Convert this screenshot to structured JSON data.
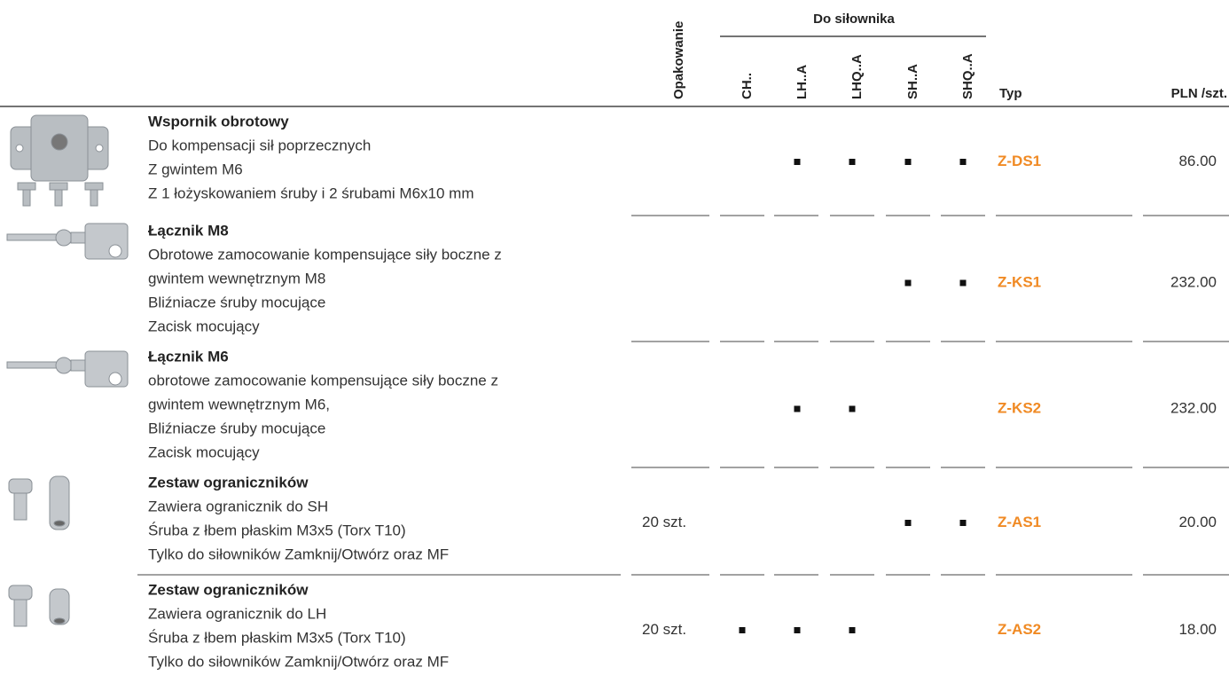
{
  "header": {
    "packaging": "Opakowanie",
    "actuator_group": "Do siłownika",
    "actuators": [
      "CH..",
      "LH..A",
      "LHQ..A",
      "SH..A",
      "SHQ..A"
    ],
    "type": "Typ",
    "price": "PLN /szt."
  },
  "rows": [
    {
      "title": "Wspornik obrotowy",
      "lines": [
        "Do kompensacji sił poprzecznych",
        "Z gwintem M6",
        "Z 1 łożyskowaniem śruby i 2 śrubami M6x10 mm"
      ],
      "fits": [
        false,
        true,
        true,
        true,
        true
      ],
      "type": "Z-DS1",
      "price": "86.00"
    },
    {
      "title": "Łącznik M8",
      "lines": [
        "Obrotowe zamocowanie kompensujące siły boczne z",
        "gwintem wewnętrznym M8",
        "Bliźniacze śruby mocujące",
        "Zacisk mocujący"
      ],
      "fits": [
        false,
        false,
        false,
        true,
        true
      ],
      "type": "Z-KS1",
      "price": "232.00"
    },
    {
      "title": "Łącznik M6",
      "lines": [
        "obrotowe zamocowanie kompensujące siły boczne z",
        "gwintem wewnętrznym M6,",
        "Bliźniacze śruby mocujące",
        "Zacisk mocujący"
      ],
      "fits": [
        false,
        true,
        true,
        false,
        false
      ],
      "type": "Z-KS2",
      "price": "232.00"
    },
    {
      "title": "Zestaw ograniczników",
      "lines": [
        "Zawiera ogranicznik do SH",
        "Śruba z łbem płaskim M3x5 (Torx T10)",
        "Tylko do siłowników Zamknij/Otwórz oraz MF"
      ],
      "packaging": "20 szt.",
      "fits": [
        false,
        false,
        false,
        true,
        true
      ],
      "type": "Z-AS1",
      "price": "20.00"
    },
    {
      "title": "Zestaw ograniczników",
      "lines": [
        "Zawiera ogranicznik do LH",
        "Śruba z łbem płaskim M3x5 (Torx T10)",
        "Tylko do siłowników Zamknij/Otwórz oraz MF"
      ],
      "packaging": "20 szt.",
      "fits": [
        true,
        true,
        true,
        false,
        false
      ],
      "type": "Z-AS2",
      "price": "18.00"
    }
  ]
}
